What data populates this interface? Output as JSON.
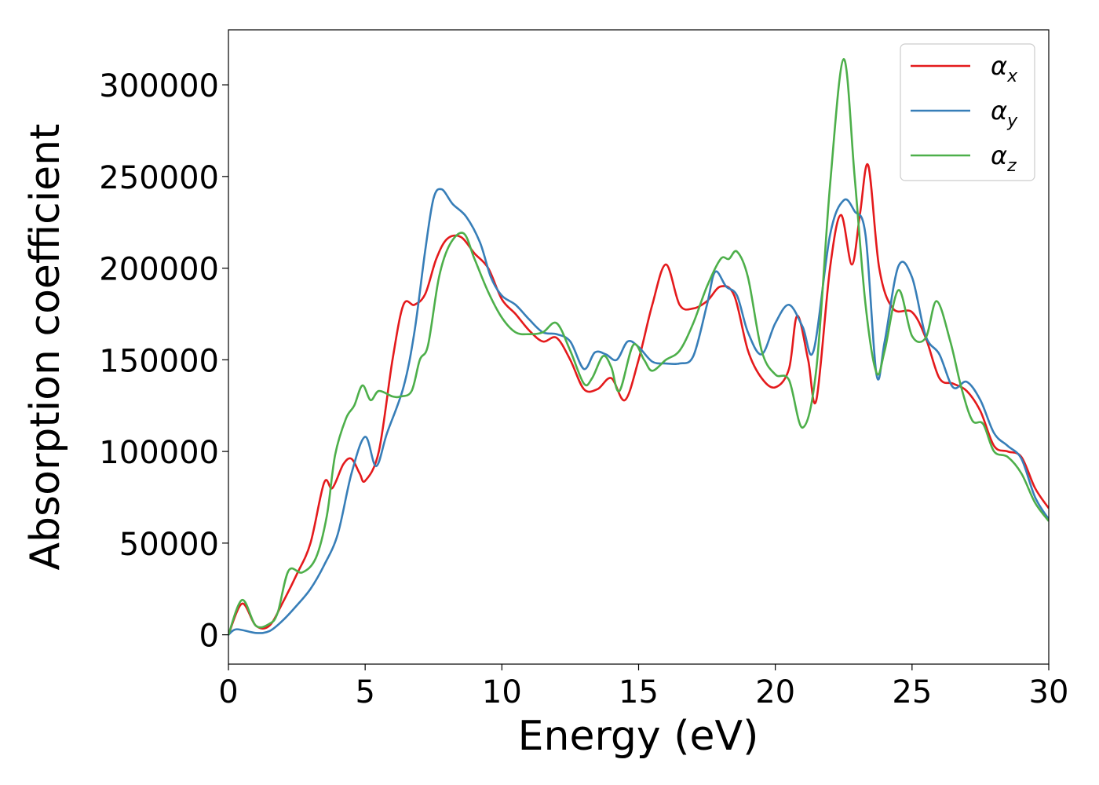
{
  "chart_data": {
    "type": "line",
    "title": "",
    "xlabel": "Energy (eV)",
    "ylabel": "Absorption coefficient",
    "xlim": [
      0,
      30
    ],
    "ylim": [
      -16000,
      330000
    ],
    "xticks": [
      0,
      5,
      10,
      15,
      20,
      25,
      30
    ],
    "yticks": [
      0,
      50000,
      100000,
      150000,
      200000,
      250000,
      300000
    ],
    "grid": false,
    "legend_position": "top-right",
    "series": [
      {
        "name": "αx",
        "base": "α",
        "sub": "x",
        "color": "#e41a1c",
        "points": [
          [
            0,
            0
          ],
          [
            0.5,
            17000
          ],
          [
            1,
            5000
          ],
          [
            1.5,
            5000
          ],
          [
            2,
            18000
          ],
          [
            2.5,
            33000
          ],
          [
            3,
            50000
          ],
          [
            3.5,
            83000
          ],
          [
            3.8,
            80000
          ],
          [
            4.2,
            93000
          ],
          [
            4.5,
            96000
          ],
          [
            4.8,
            88000
          ],
          [
            5,
            84000
          ],
          [
            5.5,
            100000
          ],
          [
            6,
            150000
          ],
          [
            6.4,
            180000
          ],
          [
            6.8,
            180000
          ],
          [
            7.2,
            186000
          ],
          [
            7.6,
            205000
          ],
          [
            8,
            216000
          ],
          [
            8.5,
            217000
          ],
          [
            9,
            208000
          ],
          [
            9.5,
            200000
          ],
          [
            10,
            183000
          ],
          [
            10.5,
            175000
          ],
          [
            11,
            166000
          ],
          [
            11.5,
            160000
          ],
          [
            12,
            162000
          ],
          [
            12.5,
            150000
          ],
          [
            13,
            134000
          ],
          [
            13.5,
            134000
          ],
          [
            14,
            140000
          ],
          [
            14.5,
            128000
          ],
          [
            15,
            150000
          ],
          [
            15.5,
            180000
          ],
          [
            16,
            202000
          ],
          [
            16.5,
            180000
          ],
          [
            17,
            178000
          ],
          [
            17.5,
            182000
          ],
          [
            18,
            190000
          ],
          [
            18.5,
            185000
          ],
          [
            19,
            155000
          ],
          [
            19.5,
            140000
          ],
          [
            20,
            135000
          ],
          [
            20.5,
            145000
          ],
          [
            20.8,
            174000
          ],
          [
            21.2,
            150000
          ],
          [
            21.5,
            128000
          ],
          [
            22,
            200000
          ],
          [
            22.4,
            229000
          ],
          [
            22.8,
            202000
          ],
          [
            23.1,
            230000
          ],
          [
            23.4,
            256000
          ],
          [
            23.8,
            200000
          ],
          [
            24.3,
            178000
          ],
          [
            25,
            176000
          ],
          [
            25.5,
            162000
          ],
          [
            26,
            140000
          ],
          [
            26.5,
            137000
          ],
          [
            27,
            133000
          ],
          [
            27.5,
            122000
          ],
          [
            28,
            103000
          ],
          [
            28.5,
            100000
          ],
          [
            29,
            97000
          ],
          [
            29.5,
            80000
          ],
          [
            30,
            69000
          ]
        ]
      },
      {
        "name": "αy",
        "base": "α",
        "sub": "y",
        "color": "#377eb8",
        "points": [
          [
            0,
            0
          ],
          [
            0.3,
            3000
          ],
          [
            1,
            1000
          ],
          [
            1.5,
            2000
          ],
          [
            2,
            8000
          ],
          [
            2.5,
            16000
          ],
          [
            3,
            25000
          ],
          [
            3.5,
            38000
          ],
          [
            4,
            55000
          ],
          [
            4.5,
            88000
          ],
          [
            5,
            108000
          ],
          [
            5.4,
            92000
          ],
          [
            5.8,
            110000
          ],
          [
            6.4,
            135000
          ],
          [
            6.8,
            165000
          ],
          [
            7.2,
            210000
          ],
          [
            7.5,
            238000
          ],
          [
            7.8,
            243000
          ],
          [
            8.2,
            235000
          ],
          [
            8.7,
            228000
          ],
          [
            9.2,
            214000
          ],
          [
            9.6,
            195000
          ],
          [
            10,
            185000
          ],
          [
            10.5,
            180000
          ],
          [
            11,
            172000
          ],
          [
            11.5,
            165000
          ],
          [
            12,
            164000
          ],
          [
            12.5,
            160000
          ],
          [
            13,
            145000
          ],
          [
            13.4,
            154000
          ],
          [
            13.8,
            153000
          ],
          [
            14.2,
            150000
          ],
          [
            14.6,
            160000
          ],
          [
            15,
            157000
          ],
          [
            15.5,
            149000
          ],
          [
            16,
            148000
          ],
          [
            16.5,
            148000
          ],
          [
            17,
            152000
          ],
          [
            17.5,
            180000
          ],
          [
            17.8,
            198000
          ],
          [
            18.2,
            190000
          ],
          [
            18.6,
            185000
          ],
          [
            19,
            165000
          ],
          [
            19.5,
            153000
          ],
          [
            20,
            170000
          ],
          [
            20.5,
            180000
          ],
          [
            21,
            168000
          ],
          [
            21.4,
            155000
          ],
          [
            22,
            218000
          ],
          [
            22.5,
            237000
          ],
          [
            22.9,
            231000
          ],
          [
            23.3,
            218000
          ],
          [
            23.7,
            142000
          ],
          [
            24,
            160000
          ],
          [
            24.5,
            201000
          ],
          [
            25,
            195000
          ],
          [
            25.5,
            163000
          ],
          [
            26,
            153000
          ],
          [
            26.5,
            135000
          ],
          [
            27,
            138000
          ],
          [
            27.5,
            128000
          ],
          [
            28,
            110000
          ],
          [
            28.5,
            103000
          ],
          [
            29,
            96000
          ],
          [
            29.5,
            75000
          ],
          [
            30,
            63000
          ]
        ]
      },
      {
        "name": "αz",
        "base": "α",
        "sub": "z",
        "color": "#4daf4a",
        "points": [
          [
            0,
            0
          ],
          [
            0.5,
            19000
          ],
          [
            1,
            5000
          ],
          [
            1.5,
            6000
          ],
          [
            1.8,
            12000
          ],
          [
            2.2,
            35000
          ],
          [
            2.7,
            34000
          ],
          [
            3.2,
            42000
          ],
          [
            3.6,
            65000
          ],
          [
            3.9,
            98000
          ],
          [
            4.3,
            118000
          ],
          [
            4.6,
            125000
          ],
          [
            4.9,
            136000
          ],
          [
            5.2,
            128000
          ],
          [
            5.5,
            133000
          ],
          [
            6,
            130000
          ],
          [
            6.3,
            130000
          ],
          [
            6.7,
            133000
          ],
          [
            7,
            150000
          ],
          [
            7.3,
            158000
          ],
          [
            7.7,
            195000
          ],
          [
            8.1,
            213000
          ],
          [
            8.6,
            219000
          ],
          [
            9,
            205000
          ],
          [
            9.5,
            187000
          ],
          [
            10,
            173000
          ],
          [
            10.5,
            165000
          ],
          [
            11,
            164000
          ],
          [
            11.5,
            165000
          ],
          [
            12,
            170000
          ],
          [
            12.5,
            155000
          ],
          [
            13,
            137000
          ],
          [
            13.3,
            140000
          ],
          [
            13.7,
            152000
          ],
          [
            14,
            146000
          ],
          [
            14.3,
            133000
          ],
          [
            14.8,
            158000
          ],
          [
            15.2,
            150000
          ],
          [
            15.5,
            144000
          ],
          [
            16,
            150000
          ],
          [
            16.5,
            155000
          ],
          [
            17,
            170000
          ],
          [
            17.5,
            190000
          ],
          [
            18,
            205000
          ],
          [
            18.3,
            205000
          ],
          [
            18.6,
            209000
          ],
          [
            19,
            195000
          ],
          [
            19.5,
            155000
          ],
          [
            20,
            142000
          ],
          [
            20.5,
            139000
          ],
          [
            21,
            113000
          ],
          [
            21.5,
            145000
          ],
          [
            22,
            245000
          ],
          [
            22.5,
            314000
          ],
          [
            22.9,
            250000
          ],
          [
            23.3,
            180000
          ],
          [
            23.7,
            143000
          ],
          [
            24,
            155000
          ],
          [
            24.5,
            188000
          ],
          [
            25,
            163000
          ],
          [
            25.5,
            162000
          ],
          [
            25.9,
            182000
          ],
          [
            26.4,
            160000
          ],
          [
            26.8,
            135000
          ],
          [
            27.2,
            117000
          ],
          [
            27.6,
            115000
          ],
          [
            28,
            100000
          ],
          [
            28.5,
            97000
          ],
          [
            29,
            88000
          ],
          [
            29.5,
            72000
          ],
          [
            30,
            62000
          ]
        ]
      }
    ]
  }
}
